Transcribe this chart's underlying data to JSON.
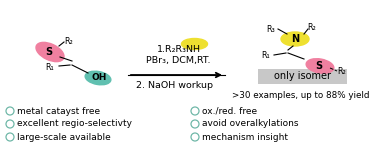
{
  "bg_color": "#ffffff",
  "pink_color": "#F080A0",
  "teal_color": "#60C0B0",
  "yellow_color": "#EEE030",
  "gray_box_color": "#C8C8C8",
  "bullet_circle_color": "#70B8A8",
  "left_bullets": [
    "metal catayst free",
    "excellent regio-selectivty",
    "large-scale available"
  ],
  "right_bullets": [
    "ox./red. free",
    "avoid overalkylations",
    "mechanism insight"
  ],
  "reaction_line1": "1.R₂R₃NH",
  "reaction_line2": "PBr₃, DCM,RT.",
  "reaction_line3": "2. NaOH workup",
  "yield_text": ">30 examples, up to 88% yield",
  "only_isomer": "only isomer",
  "bullet_fontsize": 6.5,
  "reaction_fontsize": 6.8,
  "small_fontsize": 6.3,
  "label_fontsize": 5.8
}
